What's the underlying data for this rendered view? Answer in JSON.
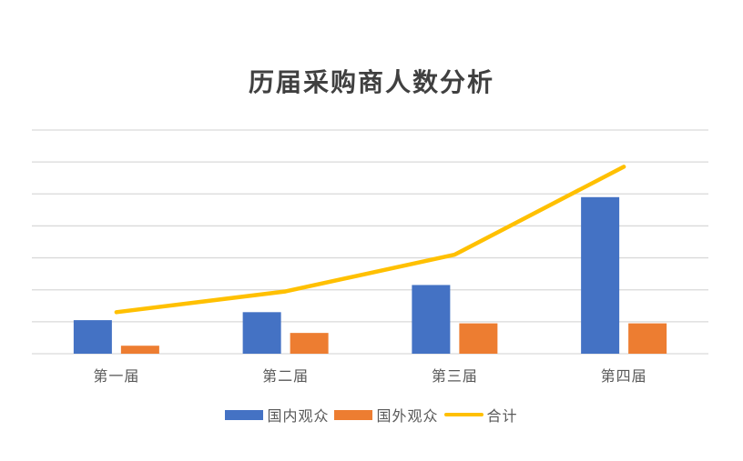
{
  "chart_data": {
    "type": "bar",
    "combo": "clustered-bar-with-line-overlay",
    "title": "历届采购商人数分析",
    "categories": [
      "第一届",
      "第二届",
      "第三届",
      "第四届"
    ],
    "series": [
      {
        "name": "国内观众",
        "type": "bar",
        "color": "#4472C4",
        "values": [
          1050,
          1300,
          2150,
          4900
        ]
      },
      {
        "name": "国外观众",
        "type": "bar",
        "color": "#ED7D31",
        "values": [
          250,
          650,
          950,
          950
        ]
      },
      {
        "name": "合计",
        "type": "line",
        "color": "#FFC000",
        "values": [
          1300,
          1950,
          3100,
          5850
        ]
      }
    ],
    "xlabel": "",
    "ylabel": "",
    "ylim": [
      0,
      7000
    ],
    "y_gridline_step": 1000,
    "grid": "horizontal-on",
    "y_axis_labels_visible": false,
    "legend_position": "bottom",
    "style": {
      "background": "#FFFFFF",
      "gridline_color": "#D9D9D9",
      "title_color": "#404040",
      "axis_label_color": "#595959"
    }
  }
}
